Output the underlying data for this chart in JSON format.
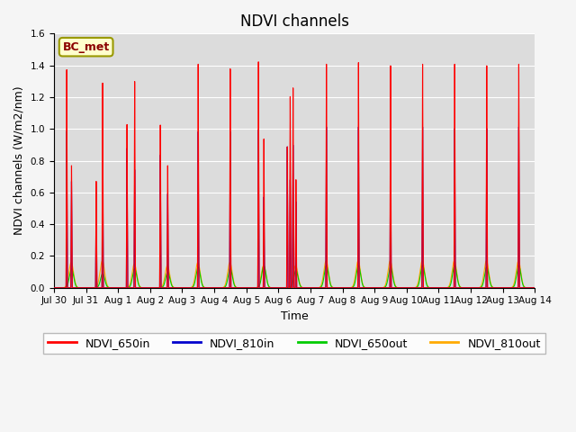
{
  "title": "NDVI channels",
  "xlabel": "Time",
  "ylabel": "NDVI channels (W/m2/nm)",
  "ylim": [
    0,
    1.6
  ],
  "annotation": "BC_met",
  "colors": {
    "NDVI_650in": "#ff0000",
    "NDVI_810in": "#0000cd",
    "NDVI_650out": "#00cc00",
    "NDVI_810out": "#ffaa00"
  },
  "background_color": "#dcdcdc",
  "xtick_labels": [
    "Jul 30",
    "Jul 31",
    "Aug 1",
    "Aug 2",
    "Aug 3",
    "Aug 4",
    "Aug 5",
    "Aug 6",
    "Aug 7",
    "Aug 8",
    "Aug 9",
    "Aug 10",
    "Aug 11",
    "Aug 12",
    "Aug 13",
    "Aug 14"
  ],
  "grid_color": "#ffffff",
  "linewidth": 0.8,
  "title_fontsize": 12,
  "label_fontsize": 9,
  "legend_fontsize": 9,
  "tick_fontsize": 7.5
}
